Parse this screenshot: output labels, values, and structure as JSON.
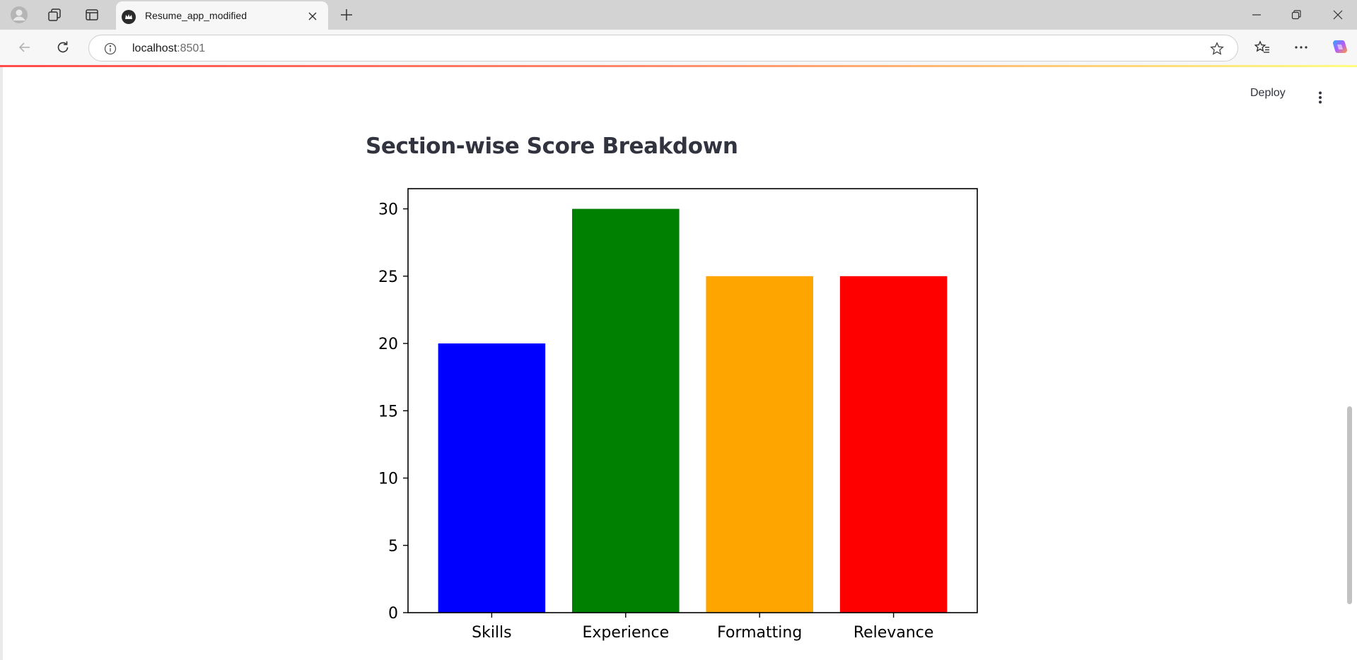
{
  "browser": {
    "tab_title": "Resume_app_modified",
    "url_host": "localhost",
    "url_port": ":8501"
  },
  "header": {
    "deploy_label": "Deploy"
  },
  "main": {
    "section_heading": "Section-wise Score Breakdown"
  },
  "colors": {
    "streamlit_accent": "#ff4b4b",
    "text": "#31333f"
  },
  "chart_data": {
    "type": "bar",
    "title": "",
    "xlabel": "",
    "ylabel": "",
    "categories": [
      "Skills",
      "Experience",
      "Formatting",
      "Relevance"
    ],
    "values": [
      20,
      30,
      25,
      25
    ],
    "colors": [
      "#0000ff",
      "#008000",
      "#ffa500",
      "#ff0000"
    ],
    "yticks": [
      0,
      5,
      10,
      15,
      20,
      25,
      30
    ],
    "ylim": [
      0,
      31.5
    ],
    "grid": false
  }
}
